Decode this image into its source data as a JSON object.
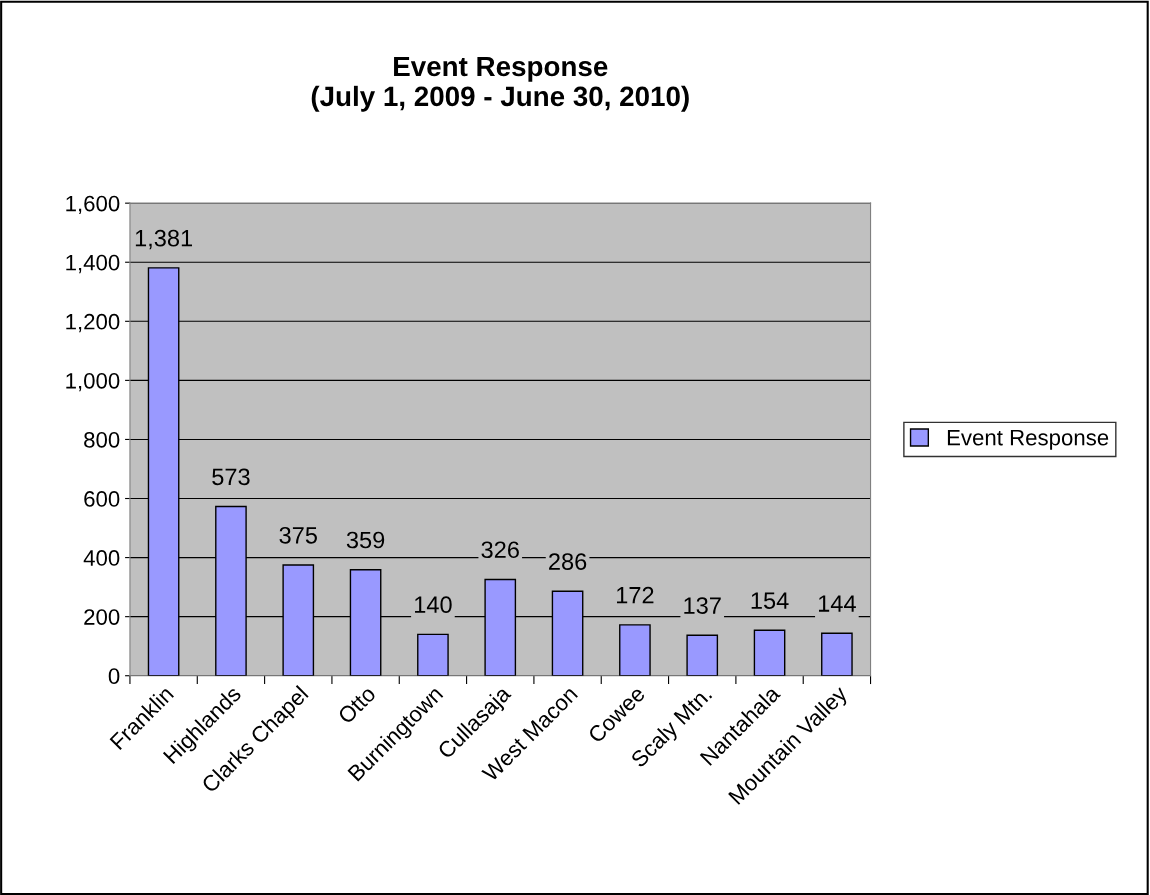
{
  "chart_data": {
    "type": "bar",
    "title": "Event Response\n(July 1, 2009 - June 30, 2010)",
    "categories": [
      "Franklin",
      "Highlands",
      "Clarks Chapel",
      "Otto",
      "Burningtown",
      "Cullasaja",
      "West Macon",
      "Cowee",
      "Scaly Mtn.",
      "Nantahala",
      "Mountain Valley"
    ],
    "series": [
      {
        "name": "Event Response",
        "color": "#9999ff",
        "values": [
          1381,
          573,
          375,
          359,
          140,
          326,
          286,
          172,
          137,
          154,
          144
        ]
      }
    ],
    "value_labels": [
      "1,381",
      "573",
      "375",
      "359",
      "140",
      "326",
      "286",
      "172",
      "137",
      "154",
      "144"
    ],
    "ylim": [
      0,
      1600
    ],
    "yticks": [
      {
        "value": 0,
        "label": "0"
      },
      {
        "value": 200,
        "label": "200"
      },
      {
        "value": 400,
        "label": "400"
      },
      {
        "value": 600,
        "label": "600"
      },
      {
        "value": 800,
        "label": "800"
      },
      {
        "value": 1000,
        "label": "1,000"
      },
      {
        "value": 1200,
        "label": "1,200"
      },
      {
        "value": 1400,
        "label": "1,400"
      },
      {
        "value": 1600,
        "label": "1,600"
      }
    ],
    "grid": "y",
    "legend": "right"
  }
}
